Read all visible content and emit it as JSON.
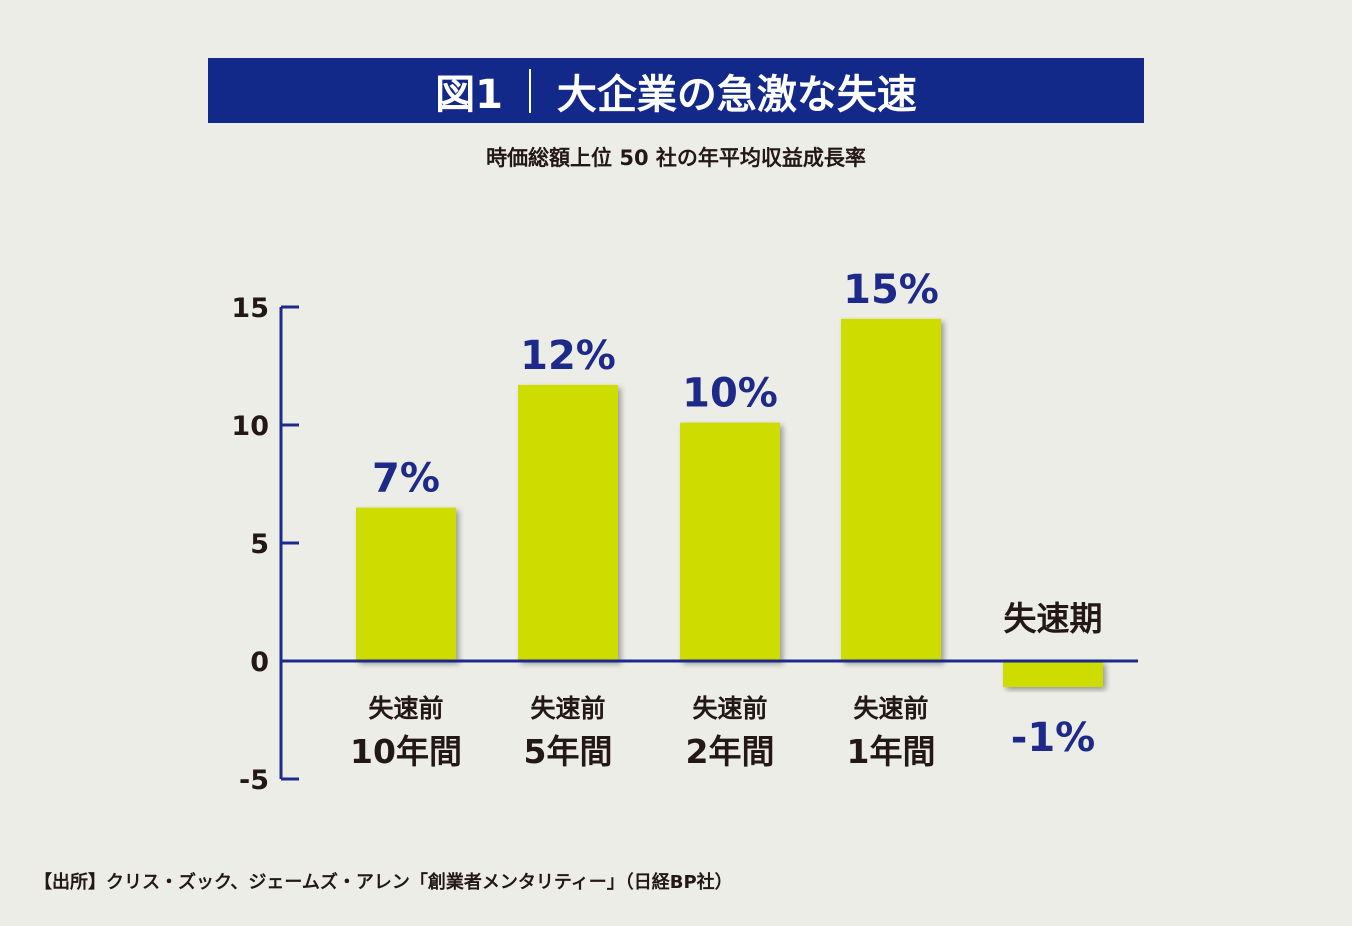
{
  "chart_data": {
    "type": "bar",
    "title_prefix": "図1",
    "title": "大企業の急激な失速",
    "subtitle": "時価総額上位 50 社の年平均収益成長率",
    "categories": [
      {
        "line1": "失速前",
        "line2": "10年間"
      },
      {
        "line1": "失速前",
        "line2": "5年間"
      },
      {
        "line1": "失速前",
        "line2": "2年間"
      },
      {
        "line1": "失速前",
        "line2": "1年間"
      },
      {
        "line1": "失速期",
        "line2": ""
      }
    ],
    "values": [
      6.5,
      11.7,
      10.1,
      14.5,
      -1.1
    ],
    "data_labels": [
      "7%",
      "12%",
      "10%",
      "15%",
      "-1%"
    ],
    "ylim": [
      -5,
      15
    ],
    "yticks": [
      15,
      10,
      5,
      0,
      -5
    ],
    "xlabel": "",
    "ylabel": "",
    "grid": false,
    "colors": {
      "bar": "#cfdc00",
      "axis": "#1e2a8a",
      "label": "#1e2a8a",
      "title_bg": "#13298a",
      "background": "#edede8"
    }
  },
  "source": "【出所】クリス・ズック、ジェームズ・アレン「創業者メンタリティー」（日経BP社）"
}
